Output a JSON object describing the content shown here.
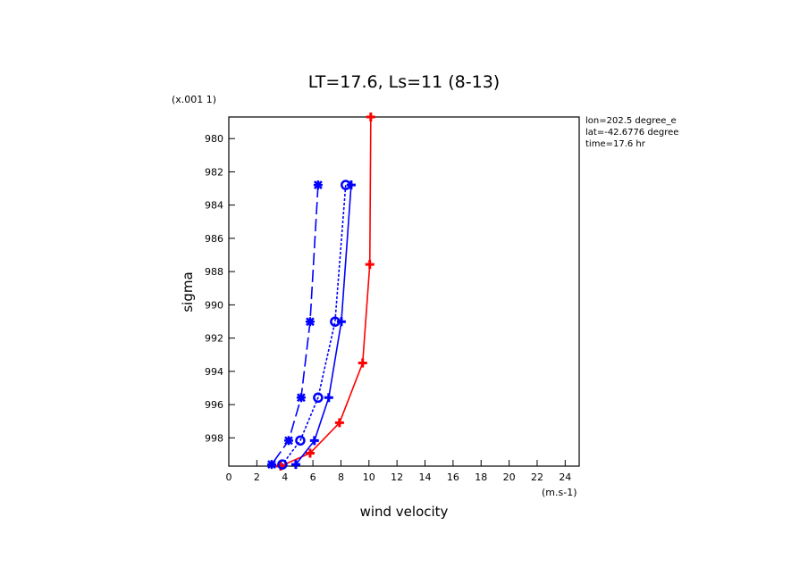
{
  "chart_data": {
    "type": "line",
    "title": "LT=17.6, Ls=11 (8-13)",
    "y_scale_note": "(x.001 1)",
    "x_unit_note": "(m.s-1)",
    "xlabel": "wind velocity",
    "ylabel": "sigma",
    "info": [
      "lon=202.5 degree_e",
      "lat=-42.6776 degree",
      "time=17.6 hr"
    ],
    "xlim": [
      0,
      25
    ],
    "xticks": [
      0,
      2,
      4,
      6,
      8,
      10,
      12,
      14,
      16,
      18,
      20,
      22,
      24
    ],
    "ylim": [
      999.7,
      978.7
    ],
    "yticks": [
      980,
      982,
      984,
      986,
      988,
      990,
      992,
      994,
      996,
      998
    ],
    "series": [
      {
        "color": "#ff0000",
        "style": "solid",
        "marker": "plus",
        "x": [
          10.13,
          10.06,
          9.55,
          7.9,
          5.8,
          3.7
        ],
        "y": [
          978.7,
          987.57,
          993.5,
          997.09,
          998.92,
          999.7
        ]
      },
      {
        "color": "#0000ff",
        "style": "solid",
        "marker": "plus",
        "x": [
          8.73,
          8.03,
          7.13,
          6.11,
          4.78
        ],
        "y": [
          982.79,
          991.01,
          995.58,
          998.16,
          999.6
        ]
      },
      {
        "color": "#0000ff",
        "style": "dotted",
        "marker": "circle",
        "x": [
          8.34,
          7.58,
          6.37,
          5.1,
          3.82
        ],
        "y": [
          982.79,
          991.01,
          995.58,
          998.16,
          999.6
        ]
      },
      {
        "color": "#0000ff",
        "style": "dashed",
        "marker": "star",
        "x": [
          6.37,
          5.8,
          5.16,
          4.27,
          3.06
        ],
        "y": [
          982.79,
          991.01,
          995.58,
          998.16,
          999.6
        ]
      }
    ]
  }
}
